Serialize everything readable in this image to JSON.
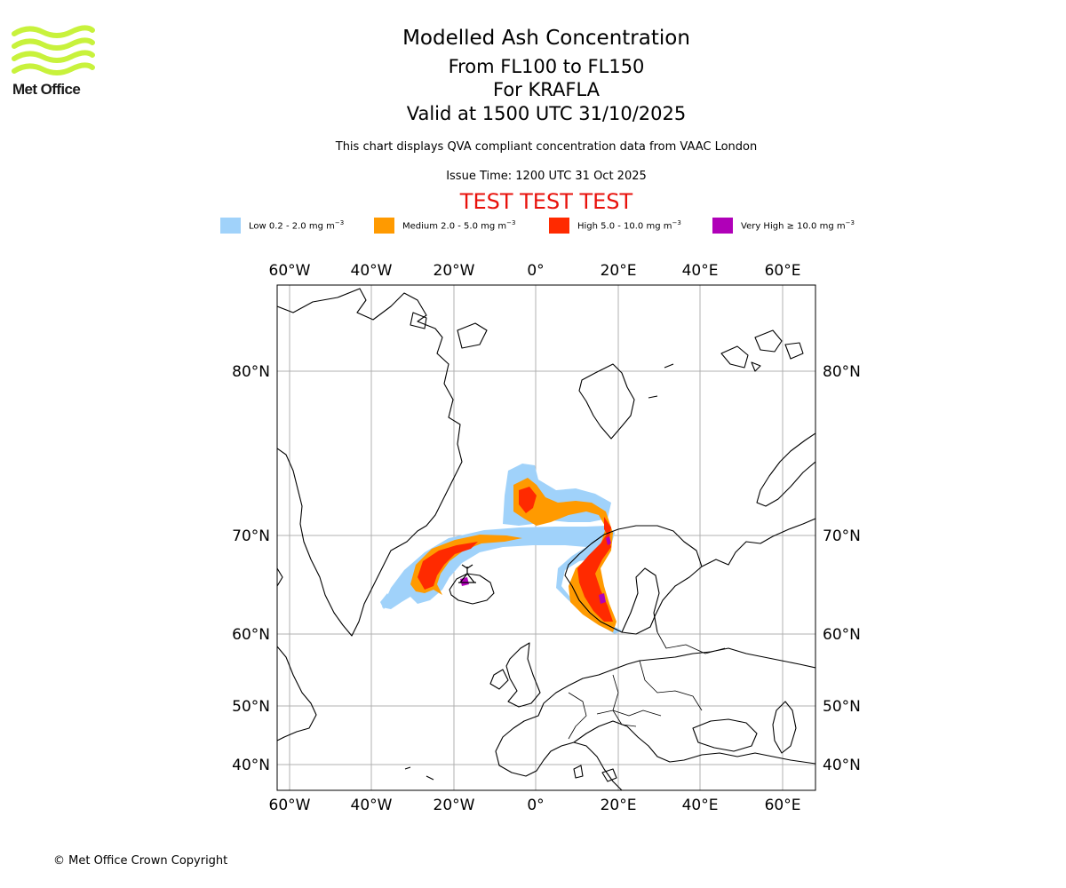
{
  "logo": {
    "name": "Met Office",
    "icon": "met-office-wave-logo",
    "color": "#c8f23c"
  },
  "title": {
    "line1": "Modelled Ash Concentration",
    "line2": "From FL100 to FL150",
    "line3": "For KRAFLA",
    "line4": "Valid at 1500 UTC 31/10/2025"
  },
  "subtitle": "This chart displays QVA compliant concentration data from VAAC London",
  "issue_time": "Issue Time: 1200 UTC 31 Oct 2025",
  "test_banner": "TEST TEST TEST",
  "legend": [
    {
      "label": "Low 0.2 - 2.0 mg m",
      "exp": "−3",
      "color": "#a0d2fa"
    },
    {
      "label": "Medium 2.0 - 5.0 mg m",
      "exp": "−3",
      "color": "#ff9a00"
    },
    {
      "label": "High 5.0 - 10.0 mg m",
      "exp": "−3",
      "color": "#ff2a00"
    },
    {
      "label": "Very High ≥ 10.0 mg m",
      "exp": "−3",
      "color": "#b000b8"
    }
  ],
  "map": {
    "lon_labels": [
      "60°W",
      "40°W",
      "20°W",
      "0°",
      "20°E",
      "40°E",
      "60°E"
    ],
    "lat_labels": [
      "80°N",
      "70°N",
      "60°N",
      "50°N",
      "40°N"
    ],
    "gridline_color": "#b0b0b0",
    "volcano": "KRAFLA"
  },
  "copyright": "© Met Office Crown Copyright"
}
